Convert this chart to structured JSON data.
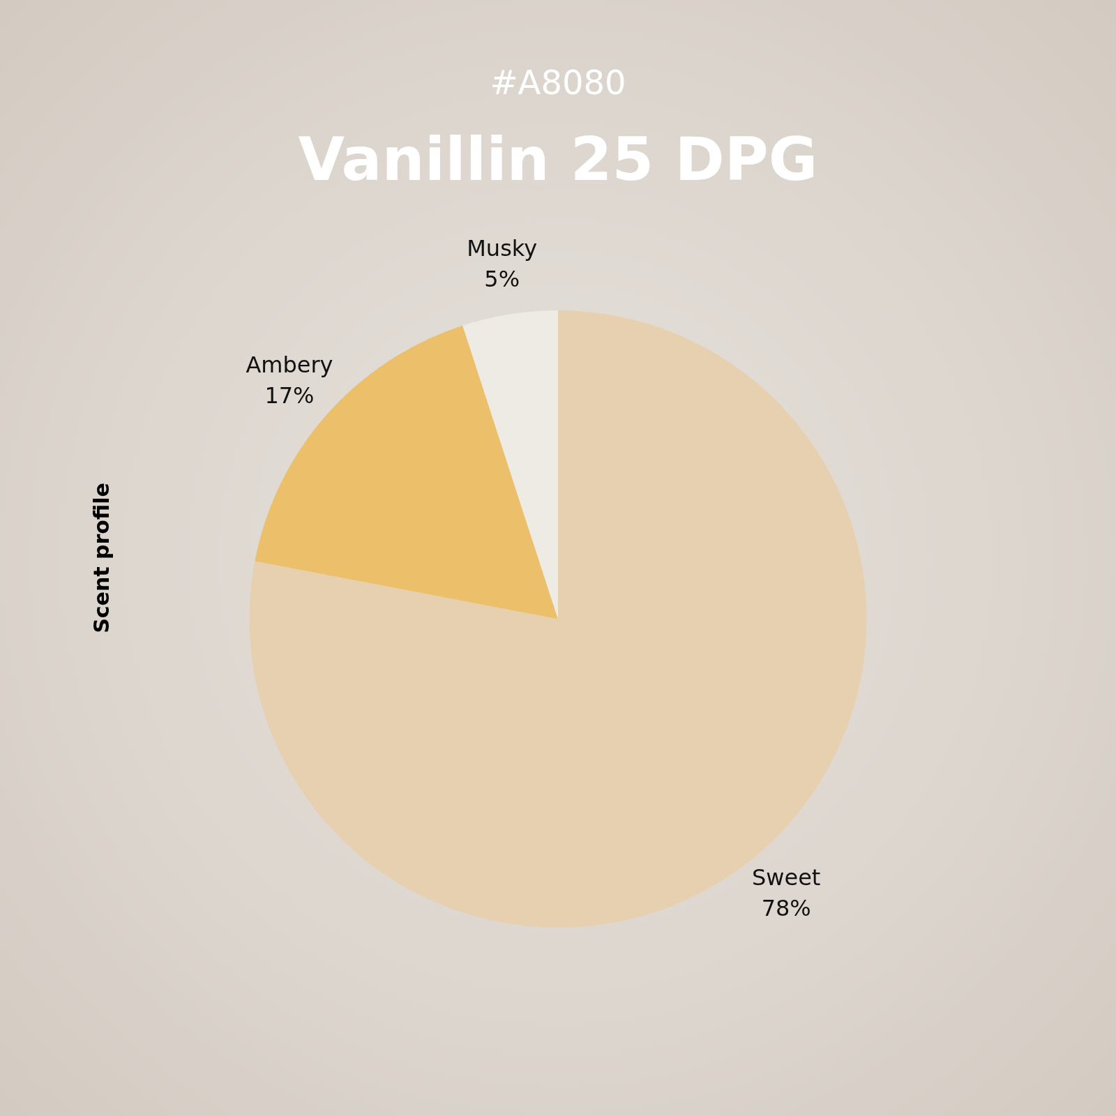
{
  "chart_data": {
    "type": "pie",
    "subtitle": "#A8080",
    "title": "Vanillin 25 DPG",
    "ylabel": "Scent profile",
    "categories": [
      "Sweet",
      "Ambery",
      "Musky"
    ],
    "values": [
      78,
      17,
      5
    ],
    "value_labels": [
      "78%",
      "17%",
      "5%"
    ],
    "colors": [
      "#e7d0b0",
      "#ecc06a",
      "#eeeae4"
    ],
    "legend": false
  }
}
